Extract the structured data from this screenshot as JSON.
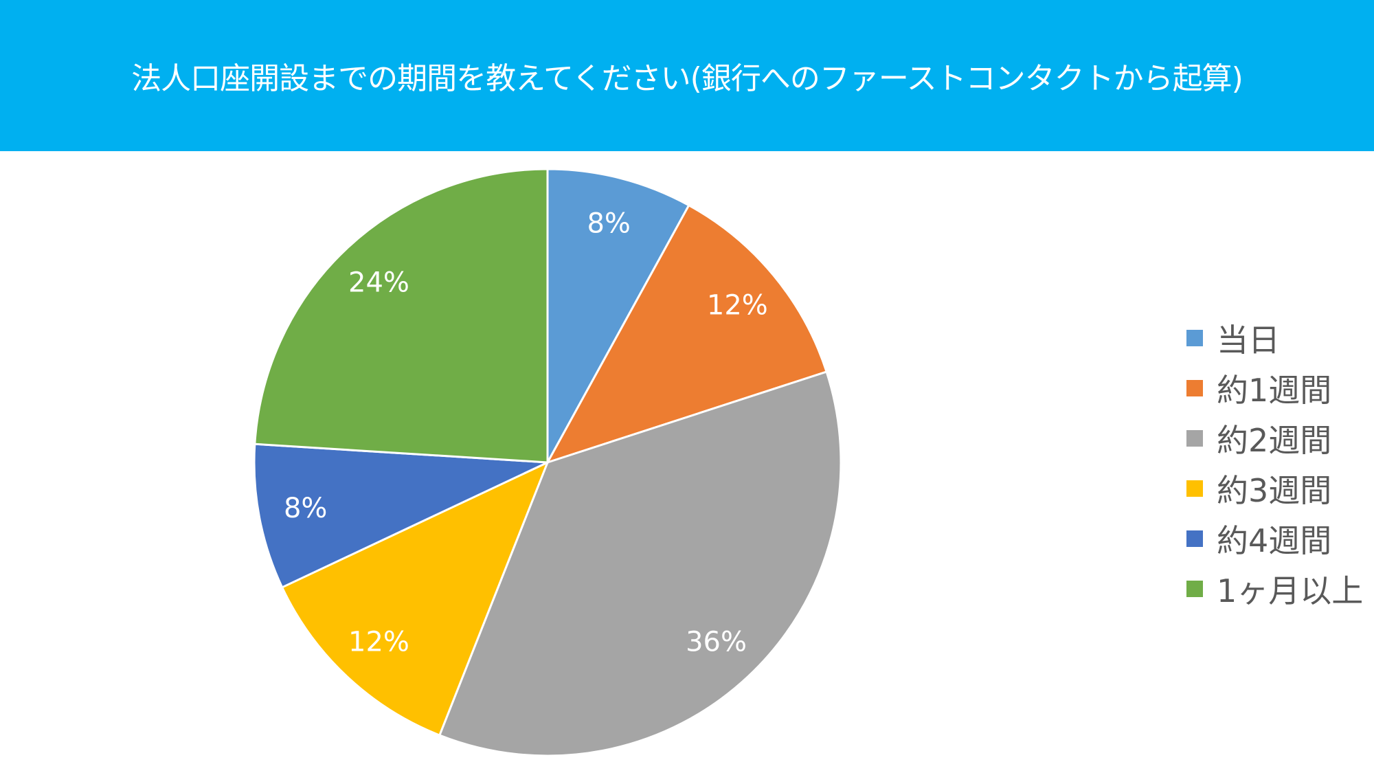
{
  "chart_data": {
    "type": "pie",
    "title": "法人口座開設までの期間を教えてください(銀行へのファーストコンタクトから起算)",
    "categories": [
      "当日",
      "約1週間",
      "約2週間",
      "約3週間",
      "約4週間",
      "1ヶ月以上"
    ],
    "values": [
      8,
      12,
      36,
      12,
      8,
      24
    ],
    "data_labels": [
      "8%",
      "12%",
      "36%",
      "12%",
      "8%",
      "24%"
    ],
    "colors": [
      "#5B9BD5",
      "#ED7D31",
      "#A5A5A5",
      "#FFC000",
      "#4472C4",
      "#70AD47"
    ],
    "start_angle": "top",
    "direction": "clockwise",
    "legend_position": "right"
  }
}
